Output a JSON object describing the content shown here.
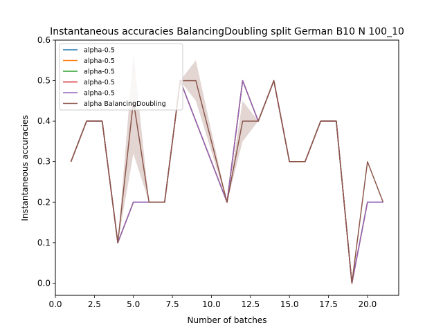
{
  "chart_data": {
    "type": "line",
    "title": "Instantaneous accuracies BalancingDoubling split German B10 N 100_10",
    "xlabel": "Number of batches",
    "ylabel": "Instantaneous accuracies",
    "xlim": [
      0.0,
      22.0
    ],
    "ylim": [
      -0.03,
      0.6
    ],
    "xticks": [
      0.0,
      2.5,
      5.0,
      7.5,
      10.0,
      12.5,
      15.0,
      17.5,
      20.0
    ],
    "xtick_labels": [
      "0.0",
      "2.5",
      "5.0",
      "7.5",
      "10.0",
      "12.5",
      "15.0",
      "17.5",
      "20.0"
    ],
    "yticks": [
      0.0,
      0.1,
      0.2,
      0.3,
      0.4,
      0.5,
      0.6
    ],
    "ytick_labels": [
      "0.0",
      "0.1",
      "0.2",
      "0.3",
      "0.4",
      "0.5",
      "0.6"
    ],
    "grid": false,
    "legend_position": "top-left",
    "x": [
      1,
      2,
      3,
      4,
      5,
      6,
      7,
      8,
      9,
      11,
      12,
      13,
      14,
      15,
      16,
      17,
      18,
      19,
      20,
      21
    ],
    "series": [
      {
        "name": "alpha-0.5",
        "color": "#1f77b4",
        "values": [
          0.3,
          0.4,
          0.4,
          0.1,
          0.2,
          0.2,
          0.2,
          0.5,
          0.4,
          0.2,
          0.5,
          0.4,
          0.5,
          0.3,
          0.3,
          0.4,
          0.4,
          0.0,
          0.2,
          0.2
        ]
      },
      {
        "name": "alpha-0.5",
        "color": "#ff7f0e",
        "values": [
          0.3,
          0.4,
          0.4,
          0.1,
          0.2,
          0.2,
          0.2,
          0.5,
          0.4,
          0.2,
          0.5,
          0.4,
          0.5,
          0.3,
          0.3,
          0.4,
          0.4,
          0.0,
          0.2,
          0.2
        ]
      },
      {
        "name": "alpha-0.5",
        "color": "#2ca02c",
        "values": [
          0.3,
          0.4,
          0.4,
          0.1,
          0.2,
          0.2,
          0.2,
          0.5,
          0.4,
          0.2,
          0.5,
          0.4,
          0.5,
          0.3,
          0.3,
          0.4,
          0.4,
          0.0,
          0.2,
          0.2
        ]
      },
      {
        "name": "alpha-0.5",
        "color": "#d62728",
        "values": [
          0.3,
          0.4,
          0.4,
          0.1,
          0.2,
          0.2,
          0.2,
          0.5,
          0.4,
          0.2,
          0.5,
          0.4,
          0.5,
          0.3,
          0.3,
          0.4,
          0.4,
          0.0,
          0.2,
          0.2
        ]
      },
      {
        "name": "alpha-0.5",
        "color": "#9467bd",
        "values": [
          0.3,
          0.4,
          0.4,
          0.1,
          0.2,
          0.2,
          0.2,
          0.5,
          0.4,
          0.2,
          0.5,
          0.4,
          0.5,
          0.3,
          0.3,
          0.4,
          0.4,
          0.0,
          0.2,
          0.2
        ]
      },
      {
        "name": "alpha BalancingDoubling",
        "color": "#8c564b",
        "values": [
          0.3,
          0.4,
          0.4,
          0.1,
          0.45,
          0.2,
          0.2,
          0.5,
          0.5,
          0.2,
          0.4,
          0.4,
          0.5,
          0.3,
          0.3,
          0.4,
          0.4,
          0.0,
          0.3,
          0.2
        ],
        "band_lower": [
          0.3,
          0.4,
          0.4,
          0.1,
          0.32,
          0.2,
          0.2,
          0.5,
          0.45,
          0.2,
          0.35,
          0.4,
          0.5,
          0.3,
          0.3,
          0.4,
          0.4,
          0.0,
          0.3,
          0.2
        ],
        "band_upper": [
          0.3,
          0.4,
          0.4,
          0.1,
          0.57,
          0.2,
          0.2,
          0.5,
          0.55,
          0.2,
          0.45,
          0.4,
          0.5,
          0.3,
          0.3,
          0.4,
          0.4,
          0.0,
          0.3,
          0.2
        ]
      }
    ]
  }
}
